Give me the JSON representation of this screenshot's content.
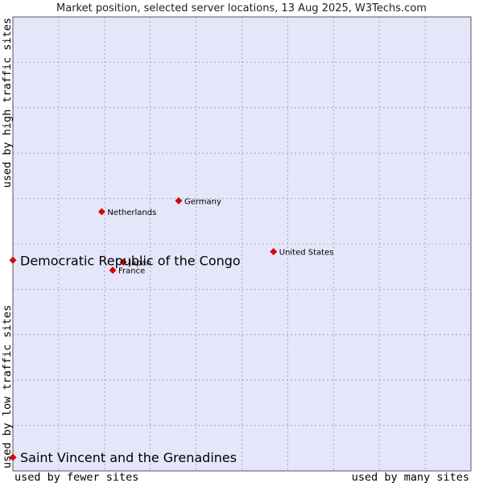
{
  "chart_data": {
    "type": "scatter",
    "title": "Market position, selected server locations, 13 Aug 2025, W3Techs.com",
    "x_label_low": "used by fewer sites",
    "x_label_high": "used by many sites",
    "y_label_low": "used by low traffic sites",
    "y_label_high": "used by high traffic sites",
    "xlim": [
      0,
      100
    ],
    "ylim": [
      0,
      100
    ],
    "grid": true,
    "points": [
      {
        "name": "Germany",
        "x": 36.2,
        "y": 59.5,
        "label_size": "small"
      },
      {
        "name": "Netherlands",
        "x": 19.4,
        "y": 57.1,
        "label_size": "small"
      },
      {
        "name": "United States",
        "x": 56.9,
        "y": 48.3,
        "label_size": "small"
      },
      {
        "name": "Japan",
        "x": 24.1,
        "y": 46.0,
        "label_size": "small"
      },
      {
        "name": "France",
        "x": 21.8,
        "y": 44.2,
        "label_size": "small"
      },
      {
        "name": "Democratic Republic of the Congo",
        "x": 0.0,
        "y": 46.4,
        "label_size": "big"
      },
      {
        "name": "Saint Vincent and the Grenadines",
        "x": 0.0,
        "y": 3.0,
        "label_size": "big"
      }
    ],
    "colors": {
      "plot_background": "#e6e6fa",
      "grid": "#9a9ab0",
      "marker": "#e60000",
      "border": "#555555"
    }
  }
}
